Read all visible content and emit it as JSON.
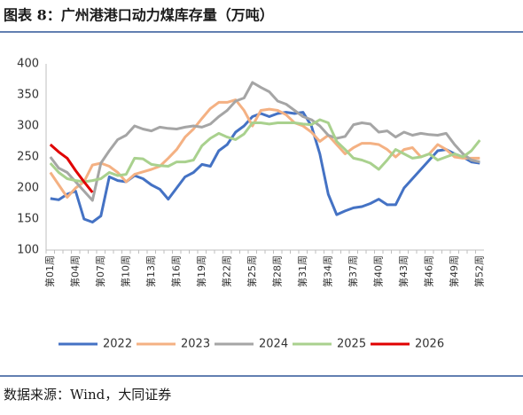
{
  "chart_data": {
    "type": "line",
    "title": "图表 8：广州港港口动力煤库存量（万吨）",
    "source": "数据来源：Wind，大同证券",
    "categories": [
      "第01周",
      null,
      null,
      "第04周",
      null,
      null,
      "第07周",
      null,
      null,
      "第10周",
      null,
      null,
      "第13周",
      null,
      null,
      "第16周",
      null,
      null,
      "第19周",
      null,
      null,
      "第22周",
      null,
      null,
      "第25周",
      null,
      null,
      "第28周",
      null,
      null,
      "第31周",
      null,
      null,
      "第34周",
      null,
      null,
      "第37周",
      null,
      null,
      "第40周",
      null,
      null,
      "第43周",
      null,
      null,
      "第46周",
      null,
      null,
      "第49周",
      null,
      null,
      "第52周"
    ],
    "ylim": [
      100,
      400
    ],
    "yticks": [
      100,
      150,
      200,
      250,
      300,
      350,
      400
    ],
    "legend": "bottom",
    "series": [
      {
        "name": "2022",
        "color": "#4472c4",
        "values": [
          183,
          181,
          190,
          195,
          150,
          145,
          155,
          218,
          212,
          210,
          220,
          215,
          205,
          198,
          182,
          200,
          218,
          225,
          238,
          235,
          260,
          270,
          290,
          300,
          315,
          320,
          315,
          320,
          322,
          320,
          322,
          300,
          255,
          190,
          157,
          163,
          168,
          170,
          175,
          182,
          173,
          173,
          200,
          215,
          230,
          245,
          260,
          262,
          255,
          250,
          242,
          240
        ]
      },
      {
        "name": "2023",
        "color": "#f4b183",
        "values": [
          225,
          205,
          185,
          200,
          210,
          237,
          240,
          235,
          225,
          210,
          222,
          226,
          230,
          235,
          248,
          262,
          282,
          295,
          312,
          328,
          338,
          338,
          342,
          325,
          300,
          325,
          327,
          325,
          318,
          305,
          300,
          290,
          275,
          285,
          270,
          255,
          265,
          272,
          272,
          270,
          262,
          250,
          262,
          265,
          250,
          255,
          270,
          262,
          250,
          248,
          248,
          248
        ]
      },
      {
        "name": "2024",
        "color": "#a5a5a5",
        "values": [
          250,
          232,
          225,
          210,
          195,
          180,
          240,
          260,
          278,
          285,
          300,
          295,
          292,
          298,
          296,
          295,
          298,
          300,
          298,
          303,
          315,
          325,
          340,
          345,
          370,
          362,
          355,
          340,
          335,
          325,
          315,
          310,
          300,
          285,
          280,
          283,
          302,
          305,
          303,
          290,
          292,
          282,
          290,
          285,
          288,
          286,
          285,
          288,
          270,
          255,
          245,
          242
        ]
      },
      {
        "name": "2025",
        "color": "#a9d18e",
        "values": [
          240,
          225,
          215,
          212,
          210,
          212,
          215,
          225,
          220,
          222,
          248,
          247,
          238,
          236,
          235,
          242,
          242,
          245,
          268,
          280,
          288,
          282,
          278,
          287,
          305,
          305,
          303,
          305,
          305,
          305,
          303,
          302,
          310,
          305,
          275,
          262,
          248,
          245,
          240,
          230,
          245,
          262,
          255,
          248,
          250,
          255,
          245,
          250,
          255,
          250,
          260,
          277
        ]
      },
      {
        "name": "2026",
        "color": "#e00000",
        "values": [
          270,
          258,
          248,
          228,
          210,
          193,
          null,
          null,
          null,
          null,
          null,
          null,
          null,
          null,
          null,
          null,
          null,
          null,
          null,
          null,
          null,
          null,
          null,
          null,
          null,
          null,
          null,
          null,
          null,
          null,
          null,
          null,
          null,
          null,
          null,
          null,
          null,
          null,
          null,
          null,
          null,
          null,
          null,
          null,
          null,
          null,
          null,
          null,
          null,
          null,
          null,
          null
        ]
      }
    ]
  }
}
